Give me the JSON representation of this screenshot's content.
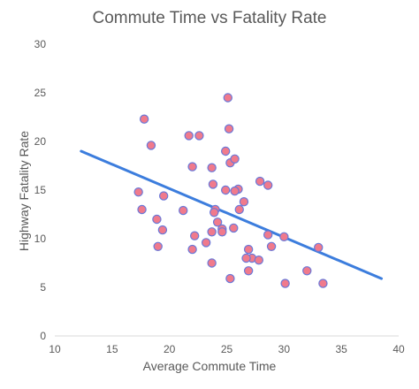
{
  "chart_data": {
    "type": "scatter",
    "title": "Commute Time vs Fatality Rate",
    "xlabel": "Average Commute Time",
    "ylabel": "Highway Fatality Rate",
    "xlim": [
      10,
      40
    ],
    "ylim": [
      0,
      30
    ],
    "xticks": [
      "10",
      "15",
      "20",
      "25",
      "30",
      "35",
      "40"
    ],
    "yticks": [
      "0",
      "5",
      "10",
      "15",
      "20",
      "25",
      "30"
    ],
    "grid": false,
    "legend": "none",
    "series": [
      {
        "x": [
          17.8,
          18.4,
          21.7,
          22.6,
          25.1,
          25.2,
          24.9,
          23.7,
          22.0,
          25.3,
          25.7,
          27.9,
          28.6,
          26.0,
          24.9,
          25.7,
          23.8,
          17.3,
          19.5,
          17.6,
          21.2,
          24.0,
          23.9,
          26.1,
          26.5,
          18.9,
          24.2,
          25.6,
          24.6,
          19.4,
          23.7,
          28.6,
          30.0,
          22.2,
          23.2,
          24.6,
          26.9,
          33.0,
          19.0,
          22.0,
          28.9,
          27.2,
          26.7,
          27.8,
          23.7,
          32.0,
          26.9,
          25.3,
          30.1,
          33.4
        ],
        "y": [
          22.3,
          19.6,
          20.6,
          20.6,
          24.5,
          21.3,
          19.0,
          17.3,
          17.4,
          17.8,
          18.2,
          15.9,
          15.5,
          15.1,
          15.0,
          14.9,
          15.6,
          14.8,
          14.4,
          13.0,
          12.9,
          13.0,
          12.7,
          13.0,
          13.8,
          12.0,
          11.7,
          11.1,
          11.0,
          10.9,
          10.7,
          10.4,
          10.2,
          10.3,
          9.6,
          10.7,
          8.9,
          9.1,
          9.2,
          8.9,
          9.2,
          8.0,
          8.0,
          7.8,
          7.5,
          6.7,
          6.7,
          5.9,
          5.4,
          5.4
        ]
      }
    ],
    "trendline": {
      "x": [
        12.3,
        38.5
      ],
      "y": [
        19.0,
        5.9
      ]
    },
    "colors": {
      "marker_fill": "#f07a8c",
      "marker_stroke": "#6a78d8",
      "trendline": "#3c7ddd",
      "axis": "#d9d9d9",
      "text": "#595959"
    }
  }
}
